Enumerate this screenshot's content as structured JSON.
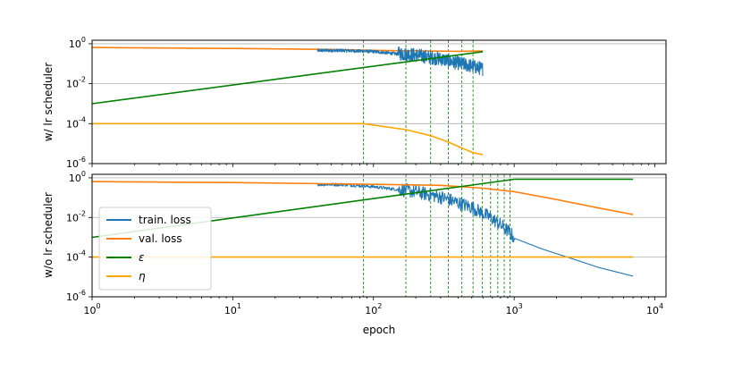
{
  "colors": {
    "train_loss": "#1f77b4",
    "val_loss": "#ff7f0e",
    "epsilon": "#008000",
    "eta": "#ffa500",
    "grid": "#b0b0b0",
    "vlines": "#008000"
  },
  "chart_data": [
    {
      "type": "line",
      "name": "top",
      "ylabel": "w/ lr scheduler",
      "xlabel": "",
      "xscale": "log",
      "yscale": "log",
      "xlim": [
        1,
        12000
      ],
      "ylim": [
        1e-06,
        1.5
      ],
      "yticks": [
        {
          "v": 1,
          "label": "10^0"
        },
        {
          "v": 0.01,
          "label": "10^-2"
        },
        {
          "v": 0.0001,
          "label": "10^-4"
        },
        {
          "v": 1e-06,
          "label": "10^-6"
        }
      ],
      "xticks_labeled": false,
      "grid": "horizontal",
      "vlines": [
        85,
        170,
        255,
        340,
        425,
        510
      ],
      "series": [
        {
          "name": "val. loss",
          "color_key": "val_loss",
          "x": [
            1,
            10,
            50,
            100,
            200,
            400,
            600
          ],
          "y": [
            0.65,
            0.58,
            0.52,
            0.47,
            0.44,
            0.42,
            0.43
          ]
        },
        {
          "name": "train. loss",
          "color_key": "train_loss",
          "noisy": true,
          "x": [
            40,
            60,
            100,
            150,
            200,
            300,
            400,
            500,
            600
          ],
          "y": [
            0.45,
            0.45,
            0.4,
            0.3,
            0.25,
            0.16,
            0.1,
            0.07,
            0.05
          ]
        },
        {
          "name": "ε",
          "color_key": "epsilon",
          "x": [
            1,
            600
          ],
          "y": [
            0.001,
            0.4
          ]
        },
        {
          "name": "η",
          "color_key": "eta",
          "x": [
            1,
            85,
            100,
            170,
            255,
            340,
            425,
            510,
            600
          ],
          "y": [
            0.0001,
            0.0001,
            8.5e-05,
            5e-05,
            2.5e-05,
            1.2e-05,
            6e-06,
            3.5e-06,
            2.8e-06
          ]
        }
      ]
    },
    {
      "type": "line",
      "name": "bottom",
      "ylabel": "w/o lr scheduler",
      "xlabel": "epoch",
      "xscale": "log",
      "yscale": "log",
      "xlim": [
        1,
        12000
      ],
      "ylim": [
        1e-06,
        1.5
      ],
      "xticks": [
        {
          "v": 1,
          "label": "10^0"
        },
        {
          "v": 10,
          "label": "10^1"
        },
        {
          "v": 100,
          "label": "10^2"
        },
        {
          "v": 1000,
          "label": "10^3"
        },
        {
          "v": 10000,
          "label": "10^4"
        }
      ],
      "yticks": [
        {
          "v": 1,
          "label": "10^0"
        },
        {
          "v": 0.01,
          "label": "10^-2"
        },
        {
          "v": 0.0001,
          "label": "10^-4"
        },
        {
          "v": 1e-06,
          "label": "10^-6"
        }
      ],
      "grid": "horizontal",
      "vlines": [
        85,
        170,
        255,
        340,
        425,
        510,
        595,
        680,
        765,
        850,
        935
      ],
      "legend": "lower-left",
      "series": [
        {
          "name": "train. loss",
          "color_key": "train_loss",
          "noisy": true,
          "x": [
            40,
            60,
            100,
            150,
            200,
            300,
            400,
            500,
            700,
            900,
            1000,
            1200,
            1600,
            2500,
            4000,
            7000
          ],
          "y": [
            0.45,
            0.45,
            0.35,
            0.25,
            0.18,
            0.1,
            0.05,
            0.03,
            0.008,
            0.002,
            0.0009,
            0.00055,
            0.00025,
            9e-05,
            3e-05,
            1.1e-05
          ]
        },
        {
          "name": "val. loss",
          "color_key": "val_loss",
          "x": [
            1,
            10,
            100,
            300,
            600,
            1000,
            2000,
            4000,
            7000
          ],
          "y": [
            0.65,
            0.58,
            0.47,
            0.42,
            0.3,
            0.2,
            0.08,
            0.03,
            0.014
          ]
        },
        {
          "name": "ε",
          "color_key": "epsilon",
          "x": [
            1,
            1000,
            7000
          ],
          "y": [
            0.001,
            0.85,
            0.85
          ]
        },
        {
          "name": "η",
          "color_key": "eta",
          "x": [
            1,
            7000
          ],
          "y": [
            0.0001,
            0.0001
          ]
        }
      ]
    }
  ],
  "legend": {
    "entries": [
      {
        "label": "train. loss",
        "color_key": "train_loss"
      },
      {
        "label": "val. loss",
        "color_key": "val_loss"
      },
      {
        "label": "ε",
        "color_key": "epsilon"
      },
      {
        "label": "η",
        "color_key": "eta"
      }
    ]
  }
}
